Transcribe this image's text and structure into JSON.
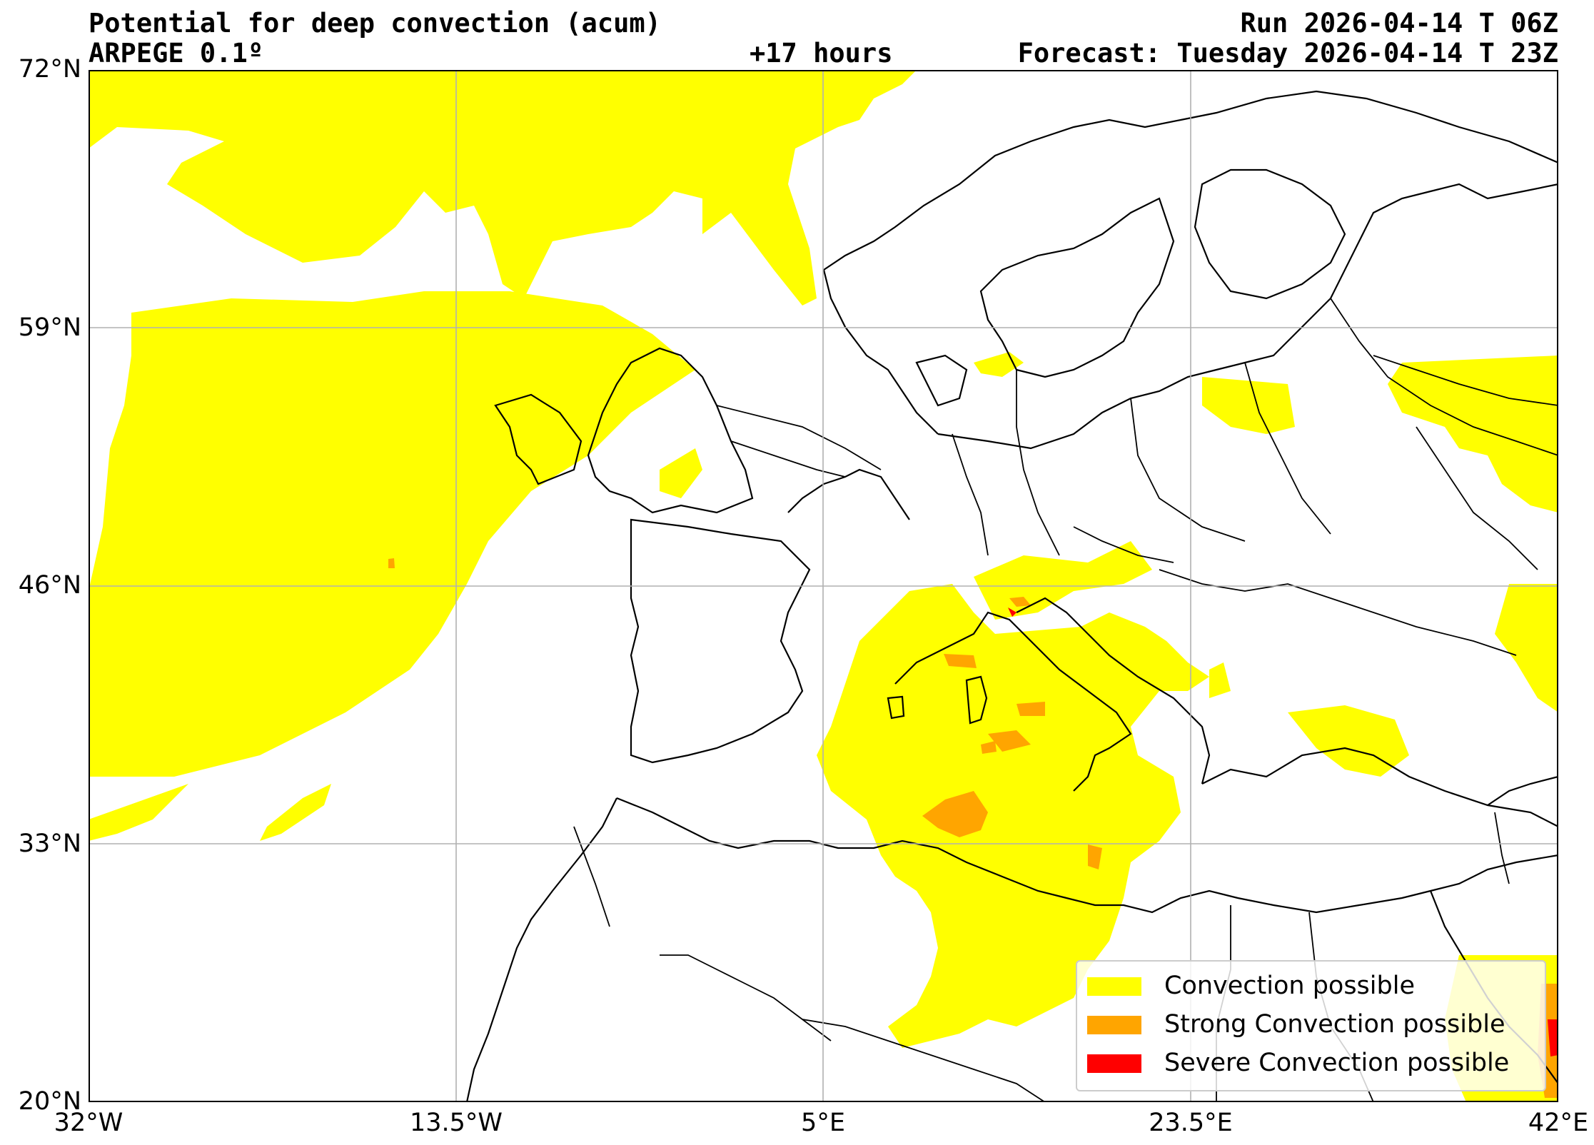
{
  "header": {
    "title": "Potential for deep convection (acum)",
    "model": "ARPEGE 0.1º",
    "lead_time": "+17 hours",
    "run": "Run 2026-04-14 T 06Z",
    "forecast": "Forecast: Tuesday 2026-04-14 T 23Z"
  },
  "axes": {
    "lat_ticks": [
      "72°N",
      "59°N",
      "46°N",
      "33°N",
      "20°N"
    ],
    "lon_ticks": [
      "32°W",
      "13.5°W",
      "5°E",
      "23.5°E",
      "42°E"
    ],
    "lat_range": [
      20,
      72
    ],
    "lon_range": [
      -32,
      42
    ],
    "grid": true
  },
  "legend": {
    "placement": "lower-right",
    "items": [
      {
        "label": "Convection possible",
        "color": "#ffff00"
      },
      {
        "label": "Strong Convection possible",
        "color": "#ffa500"
      },
      {
        "label": "Severe Convection possible",
        "color": "#ff0000"
      }
    ]
  },
  "colors": {
    "convection": "#ffff00",
    "strong": "#ffa500",
    "severe": "#ff0000",
    "coastline": "#000000",
    "grid": "#b0b0b0"
  }
}
